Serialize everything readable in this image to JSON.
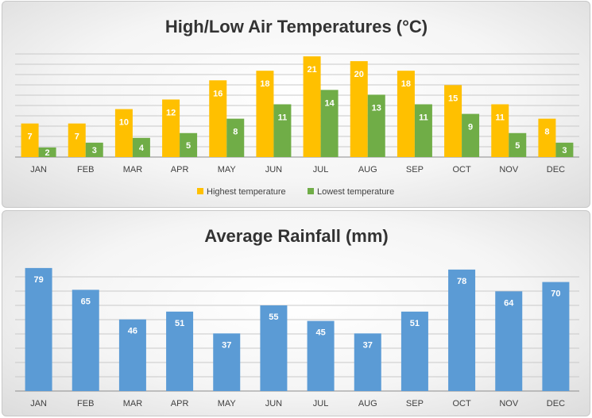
{
  "colors": {
    "high": "#FFC000",
    "low": "#70AD47",
    "rain": "#5B9BD5",
    "grid": "#c9c9c9",
    "axis": "#8c8c8c"
  },
  "chart_data": [
    {
      "type": "bar",
      "title": "High/Low Air Temperatures (°C)",
      "xlabel": "",
      "ylabel": "",
      "categories": [
        "JAN",
        "FEB",
        "MAR",
        "APR",
        "MAY",
        "JUN",
        "JUL",
        "AUG",
        "SEP",
        "OCT",
        "NOV",
        "DEC"
      ],
      "series": [
        {
          "name": "Highest temperature",
          "color": "#FFC000",
          "values": [
            7,
            7,
            10,
            12,
            16,
            18,
            21,
            20,
            18,
            15,
            11,
            8
          ]
        },
        {
          "name": "Lowest temperature",
          "color": "#70AD47",
          "values": [
            2,
            3,
            4,
            5,
            8,
            11,
            14,
            13,
            11,
            9,
            5,
            3
          ]
        }
      ],
      "ylim": [
        0,
        22
      ],
      "grid": true,
      "legend": "bottom",
      "data_labels": true
    },
    {
      "type": "bar",
      "title": "Average Rainfall (mm)",
      "xlabel": "",
      "ylabel": "",
      "categories": [
        "JAN",
        "FEB",
        "MAR",
        "APR",
        "MAY",
        "JUN",
        "JUL",
        "AUG",
        "SEP",
        "OCT",
        "NOV",
        "DEC"
      ],
      "series": [
        {
          "color": "#5B9BD5",
          "values": [
            79,
            65,
            46,
            51,
            37,
            55,
            45,
            37,
            51,
            78,
            64,
            70
          ]
        }
      ],
      "ylim": [
        0,
        82
      ],
      "grid": true,
      "legend": "none",
      "data_labels": true
    }
  ]
}
